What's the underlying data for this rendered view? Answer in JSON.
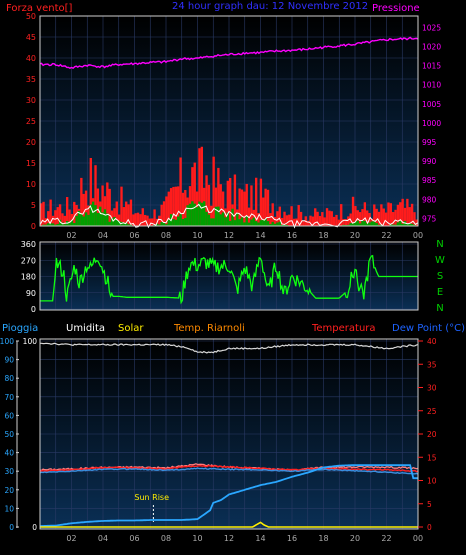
{
  "colors": {
    "background": "#000000",
    "plot_bg_top": "#000000",
    "plot_bg_bottom": "#0a2f55",
    "frame": "#cfcfcf",
    "grid": "#2a3a66",
    "wind_gust": "#ff1c1c",
    "wind_avg": "#00a000",
    "wind_line": "#ffffff",
    "pressure": "#ff00ff",
    "direction": "#10ff10",
    "direction_labels": "#00d000",
    "rain": "#2aa7ff",
    "humidity": "#d8d8d8",
    "solar": "#ffee00",
    "temp_indoor": "#ff7b7b",
    "temperature": "#ff2020",
    "dewpoint": "#3a8fe0",
    "humidity_label": "#ffffff",
    "solar_label": "#ffee00",
    "indoor_label": "#ff8a00",
    "temp_label": "#ff2020",
    "dew_label": "#1e63ff",
    "title": "#3030ff",
    "left_tick": "#ff2020",
    "pressure_tick": "#ff00ff"
  },
  "header": {
    "wind_label": "Forza vento[]",
    "title": "24 hour graph dau: 12 Novembre 2012",
    "pressure_label": "Pressione"
  },
  "bottom_legend": {
    "rain": "Pioggia",
    "humidity": "Umidita",
    "solar": "Solar",
    "indoor": "Temp. Riarnoli",
    "temperature": "Temperatura",
    "dewpoint": "Dew Point (°C)"
  },
  "annotation": {
    "sunrise": "Sun Rise",
    "sunrise_hour": 7.2
  },
  "chart_data": [
    {
      "type": "area",
      "panel": "wind-pressure",
      "x_ticks": [
        "02",
        "04",
        "06",
        "08",
        "10",
        "12",
        "14",
        "16",
        "18",
        "20",
        "22",
        "00"
      ],
      "y_left_ticks": [
        0,
        5,
        10,
        15,
        20,
        25,
        30,
        35,
        40,
        45,
        50
      ],
      "ylim_left": [
        0,
        50
      ],
      "y_right_ticks": [
        975,
        980,
        985,
        990,
        995,
        1000,
        1005,
        1010,
        1015,
        1020,
        1025
      ],
      "ylim_right": [
        973,
        1028
      ],
      "series": [
        {
          "name": "Pressione",
          "axis": "right",
          "hours": [
            0,
            1,
            2,
            3,
            4,
            5,
            6,
            7,
            8,
            9,
            10,
            11,
            12,
            13,
            14,
            15,
            16,
            17,
            18,
            19,
            20,
            21,
            22,
            23,
            24
          ],
          "values": [
            1015.3,
            1015.3,
            1014.4,
            1015.1,
            1014.7,
            1015.3,
            1015.5,
            1015.8,
            1016.0,
            1016.8,
            1016.9,
            1017.5,
            1017.9,
            1018.3,
            1018.4,
            1018.8,
            1019.0,
            1019.3,
            1019.8,
            1020.2,
            1020.6,
            1021.2,
            1021.8,
            1022.0,
            1022.2
          ]
        }
      ],
      "wind_profile": {
        "hours": [
          0,
          1,
          2,
          3,
          4,
          5,
          6,
          7,
          8,
          9,
          10,
          11,
          12,
          13,
          14,
          15,
          16,
          17,
          18,
          19,
          20,
          21,
          22,
          23,
          24
        ],
        "gust": [
          4,
          5,
          5,
          13,
          10,
          7,
          4,
          3,
          5,
          12,
          14,
          12,
          9,
          8,
          8,
          6,
          4,
          3,
          3,
          4,
          5,
          4,
          4,
          5,
          4
        ],
        "average": [
          0,
          1,
          1,
          5,
          3,
          1,
          0,
          0,
          1,
          4,
          5,
          4,
          3,
          2,
          2,
          1,
          0,
          0,
          0,
          0,
          1,
          1,
          0,
          1,
          0
        ]
      }
    },
    {
      "type": "line",
      "panel": "wind-direction",
      "y_ticks": [
        0,
        90,
        180,
        270,
        360
      ],
      "ylim": [
        0,
        360
      ],
      "compass": [
        "N",
        "W",
        "S",
        "E",
        "N"
      ],
      "series": [
        {
          "name": "direction",
          "hours": [
            0,
            0.8,
            1.0,
            1.5,
            1.7,
            2.2,
            2.5,
            3.0,
            3.2,
            3.7,
            4.0,
            4.3,
            4.5,
            5.0,
            5.5,
            6.0,
            7.0,
            8.0,
            9.0,
            9.2,
            9.5,
            10.0,
            10.5,
            11.0,
            12.0,
            12.5,
            13.0,
            13.5,
            14.0,
            14.5,
            15.0,
            15.5,
            16.0,
            16.5,
            17.0,
            17.5,
            18.0,
            18.5,
            19.0,
            19.5,
            20.0,
            20.5,
            21.0,
            21.5,
            22.0,
            23.0,
            24.0
          ],
          "values": [
            45,
            45,
            260,
            200,
            60,
            240,
            140,
            250,
            220,
            300,
            220,
            150,
            70,
            70,
            65,
            65,
            65,
            65,
            60,
            150,
            250,
            240,
            260,
            230,
            240,
            100,
            230,
            120,
            300,
            90,
            250,
            80,
            180,
            150,
            110,
            60,
            60,
            60,
            60,
            100,
            220,
            60,
            280,
            180,
            180,
            180,
            180
          ]
        }
      ]
    },
    {
      "type": "line",
      "panel": "weather",
      "y_left_ticks": [
        0,
        10,
        20,
        30,
        40,
        50,
        60,
        70,
        80,
        90,
        100
      ],
      "ylim_left": [
        0,
        100
      ],
      "y_mid_ticks": [
        0,
        100
      ],
      "y_right_ticks": [
        0,
        5,
        10,
        15,
        20,
        25,
        30,
        35,
        40
      ],
      "ylim_right": [
        0,
        40
      ],
      "series": [
        {
          "name": "Umidita",
          "axis": "left",
          "hours": [
            0,
            2,
            4,
            6,
            8,
            9,
            9.5,
            10,
            11,
            12,
            14,
            16,
            18,
            20,
            22,
            24
          ],
          "values": [
            99,
            98,
            98,
            98,
            98,
            97,
            96,
            94,
            94,
            96,
            96,
            98,
            98,
            98,
            96,
            98
          ]
        },
        {
          "name": "Temp. Riarnoli",
          "axis": "right",
          "hours": [
            0,
            2,
            4,
            6,
            8,
            10,
            12,
            14,
            16,
            18,
            20,
            22,
            24
          ],
          "values": [
            12.3,
            12.5,
            12.8,
            12.9,
            12.7,
            13.5,
            12.9,
            12.6,
            12.2,
            12.8,
            12.9,
            12.9,
            12.6
          ]
        },
        {
          "name": "Temperatura",
          "axis": "right",
          "hours": [
            0,
            2,
            4,
            6,
            8,
            10,
            12,
            14,
            16,
            18,
            20,
            22,
            24
          ],
          "values": [
            12.0,
            12.3,
            12.8,
            12.7,
            12.5,
            13.2,
            12.9,
            12.6,
            12.3,
            12.6,
            12.4,
            12.3,
            12.0
          ]
        },
        {
          "name": "Dew Point",
          "axis": "right",
          "hours": [
            0,
            2,
            4,
            6,
            8,
            10,
            12,
            14,
            16,
            18,
            20,
            22,
            24
          ],
          "values": [
            11.7,
            12.0,
            12.4,
            12.5,
            12.2,
            12.6,
            12.4,
            12.3,
            12.0,
            12.4,
            12.1,
            11.8,
            11.4
          ]
        },
        {
          "name": "Pioggia",
          "axis": "right",
          "hours": [
            0,
            1,
            2,
            3,
            4,
            5,
            6,
            7,
            8,
            9,
            10,
            10.3,
            10.8,
            11,
            11.5,
            12,
            13,
            14,
            15,
            16,
            17,
            18,
            19,
            20,
            21,
            22,
            23,
            23.5,
            23.7,
            24
          ],
          "values": [
            0.2,
            0.3,
            0.8,
            1.1,
            1.3,
            1.4,
            1.4,
            1.5,
            1.5,
            1.5,
            1.7,
            2.4,
            3.6,
            5.2,
            5.8,
            7.0,
            8.0,
            9.0,
            9.7,
            10.8,
            11.7,
            12.8,
            13.2,
            13.3,
            13.3,
            13.3,
            13.3,
            13.3,
            10.5,
            10.5
          ]
        },
        {
          "name": "Solar",
          "axis": "right",
          "hours": [
            0,
            13.5,
            13.8,
            14,
            14.2,
            14.5,
            24
          ],
          "values": [
            0,
            0,
            0.6,
            1.0,
            0.5,
            0,
            0
          ]
        }
      ]
    }
  ]
}
